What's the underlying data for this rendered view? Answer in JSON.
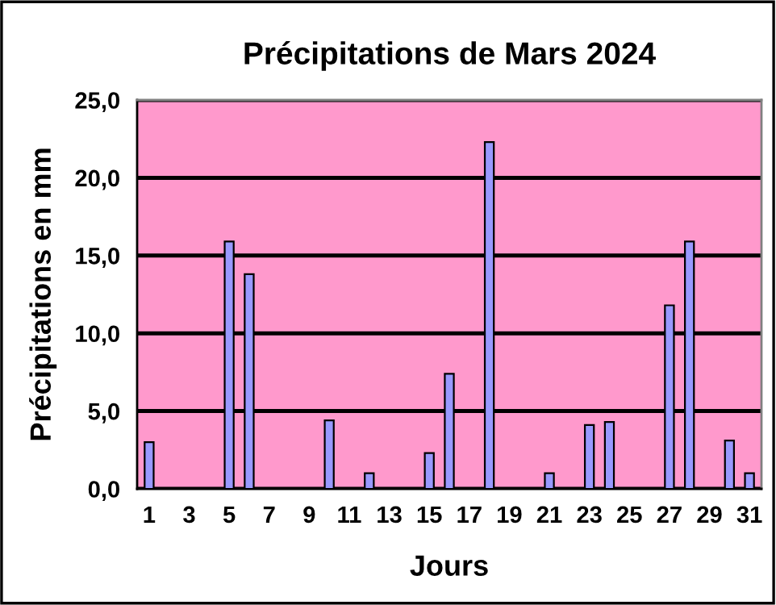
{
  "chart_data": {
    "type": "bar",
    "title": "Précipitations de Mars 2024",
    "xlabel": "Jours",
    "ylabel": "Précipitations en mm",
    "categories": [
      "1",
      null,
      "3",
      null,
      "5",
      null,
      "7",
      null,
      "9",
      null,
      "11",
      null,
      "13",
      null,
      "15",
      null,
      "17",
      null,
      "19",
      null,
      "21",
      null,
      "23",
      null,
      "25",
      null,
      "27",
      null,
      "29",
      null,
      "31"
    ],
    "values": [
      3.0,
      null,
      null,
      null,
      15.9,
      13.8,
      null,
      null,
      null,
      4.4,
      null,
      1.0,
      null,
      null,
      2.3,
      7.4,
      null,
      22.3,
      null,
      null,
      1.0,
      null,
      4.1,
      4.3,
      null,
      null,
      11.8,
      15.9,
      null,
      3.1,
      1.0
    ],
    "color": "#9999ff",
    "ylim": [
      0,
      25
    ],
    "yticks": [
      {
        "value": 0,
        "label": "0,0"
      },
      {
        "value": 5,
        "label": "5,0"
      },
      {
        "value": 10,
        "label": "10,0"
      },
      {
        "value": 15,
        "label": "15,0"
      },
      {
        "value": 20,
        "label": "20,0"
      },
      {
        "value": 25,
        "label": "25,0"
      }
    ],
    "grid": "y",
    "legend": false
  }
}
